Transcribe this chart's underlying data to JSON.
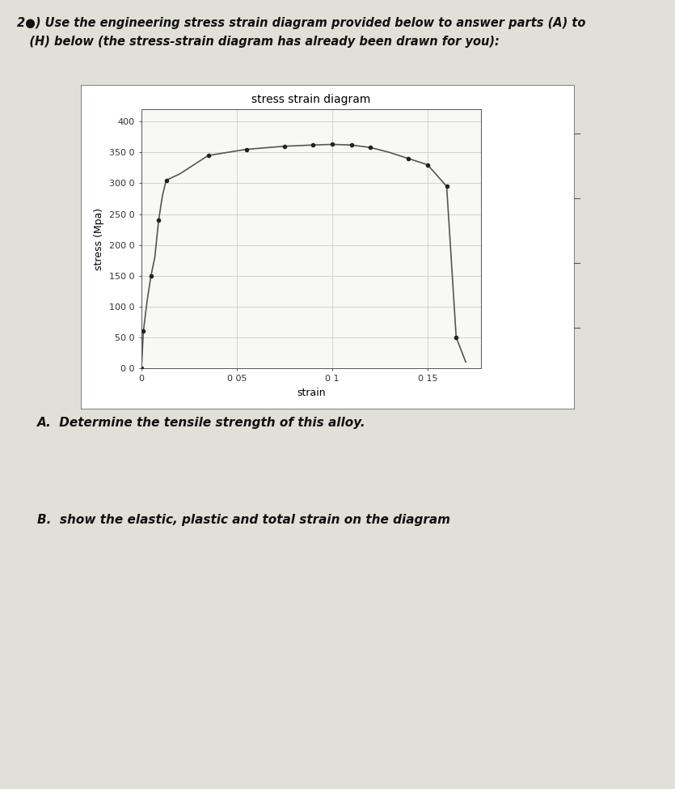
{
  "title": "stress strain diagram",
  "xlabel": "strain",
  "ylabel": "stress (Mpa)",
  "ytick_labels": [
    "0 0",
    "50 0",
    "100 0",
    "150 0",
    "200 0",
    "250 0",
    "300 0",
    "350 0",
    "400"
  ],
  "ytick_vals": [
    0.0,
    50.0,
    100.0,
    150.0,
    200.0,
    250.0,
    300.0,
    350.0,
    400.0
  ],
  "xtick_labels": [
    "0",
    "0 05",
    "0 1",
    "0 15"
  ],
  "xtick_vals": [
    0.0,
    0.05,
    0.1,
    0.15
  ],
  "xlim": [
    0.0,
    0.178
  ],
  "ylim": [
    0.0,
    420.0
  ],
  "curve_x": [
    0.0,
    0.001,
    0.003,
    0.005,
    0.007,
    0.009,
    0.011,
    0.013,
    0.02,
    0.035,
    0.055,
    0.075,
    0.09,
    0.1,
    0.11,
    0.12,
    0.13,
    0.14,
    0.15,
    0.16,
    0.165,
    0.17
  ],
  "curve_y": [
    0.0,
    60.0,
    110.0,
    150.0,
    180.0,
    240.0,
    280.0,
    305.0,
    315.0,
    345.0,
    355.0,
    360.0,
    362.0,
    363.0,
    362.0,
    358.0,
    350.0,
    340.0,
    330.0,
    295.0,
    50.0,
    10.0
  ],
  "data_points_x": [
    0.0,
    0.001,
    0.005,
    0.009,
    0.013,
    0.035,
    0.055,
    0.075,
    0.09,
    0.1,
    0.11,
    0.12,
    0.14,
    0.15,
    0.16,
    0.165
  ],
  "data_points_y": [
    0.0,
    60.0,
    150.0,
    240.0,
    305.0,
    345.0,
    355.0,
    360.0,
    362.0,
    363.0,
    362.0,
    358.0,
    340.0,
    330.0,
    295.0,
    50.0
  ],
  "curve_color": "#555555",
  "dot_color": "#222222",
  "grid_color": "#cccccc",
  "plot_bg": "#f8f8f5",
  "outer_box_bg": "white",
  "page_bg": "#e0e0d8",
  "title_fontsize": 10,
  "axis_label_fontsize": 9,
  "tick_fontsize": 8,
  "header_fontsize": 10.5,
  "question_fontsize": 11,
  "header_line1": "2●) Use the engineering stress strain diagram provided below to answer parts (A) to",
  "header_line2": "   (H) below (the stress-strain diagram has already been drawn for you):",
  "question_A": "A.  Determine the tensile strength of this alloy.",
  "question_B": "B.  show the elastic, plastic and total strain on the diagram"
}
